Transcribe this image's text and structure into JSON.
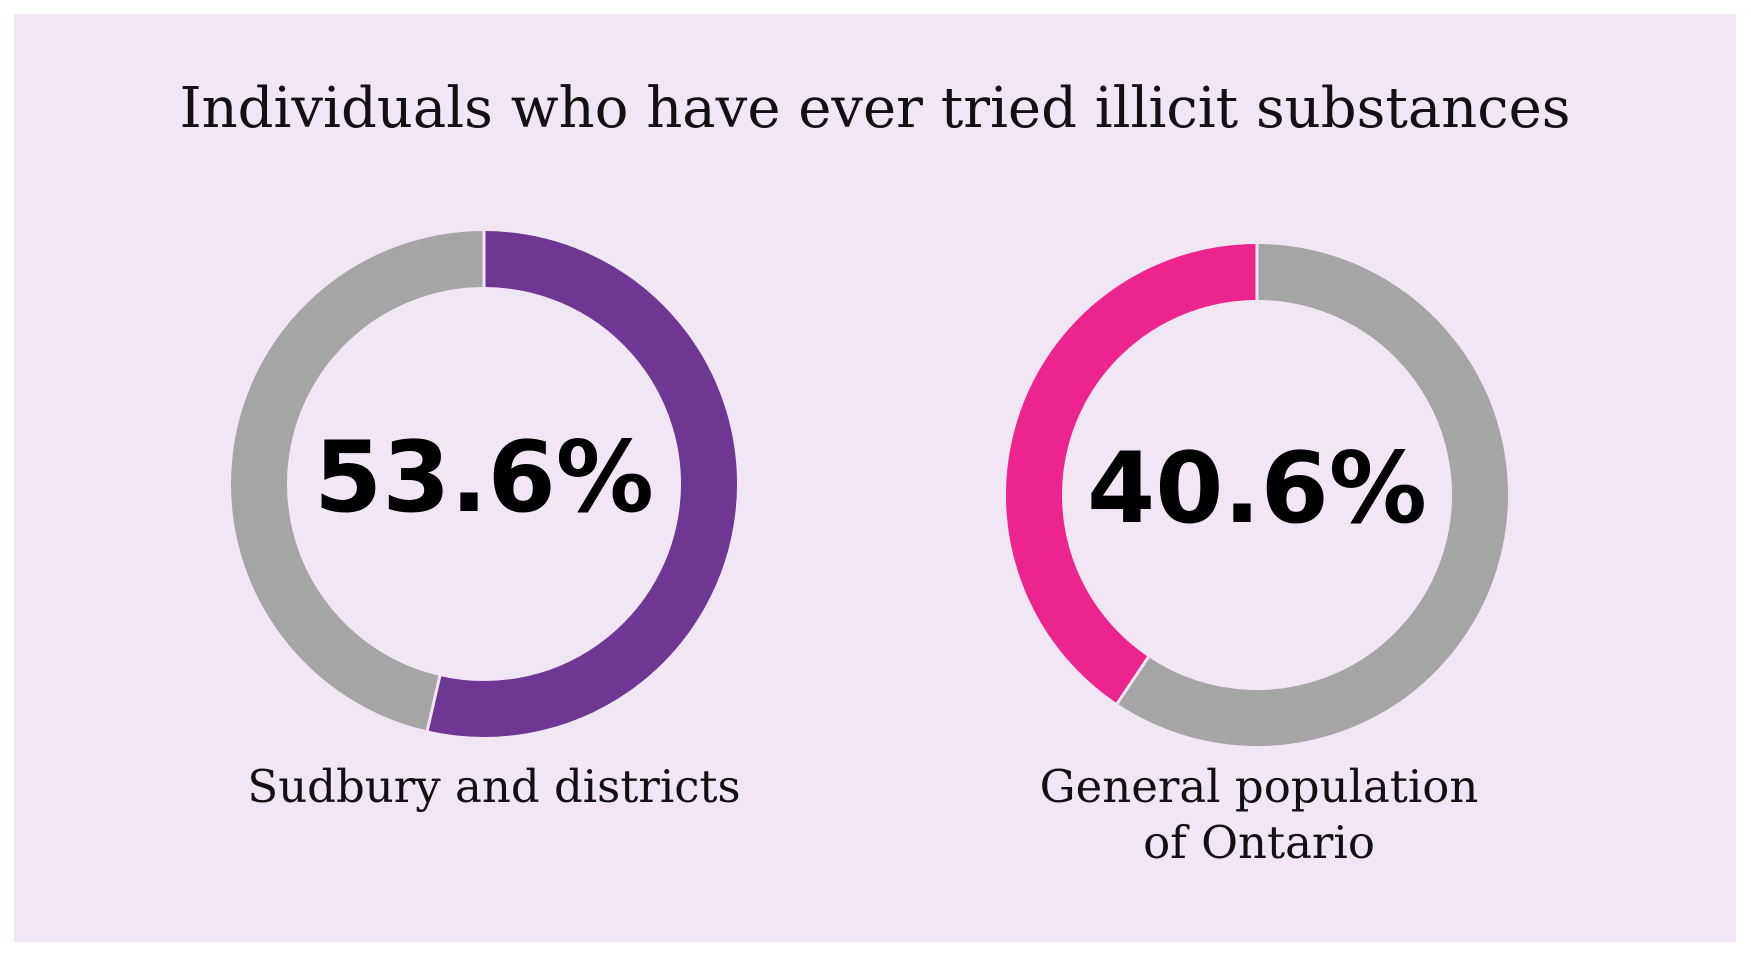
{
  "chart_data": {
    "type": "pie",
    "title": "Individuals who have ever tried illicit substances",
    "charts": [
      {
        "label": "Sudbury and districts",
        "value": 53.6,
        "display": "53.6%",
        "color": "#6e3794",
        "rest_color": "#a6a5a6",
        "direction": "clockwise"
      },
      {
        "label": "General population\nof Ontario",
        "value": 40.6,
        "display": "40.6%",
        "color": "#ee248e",
        "rest_color": "#a6a5a6",
        "direction": "counterclockwise"
      }
    ]
  }
}
